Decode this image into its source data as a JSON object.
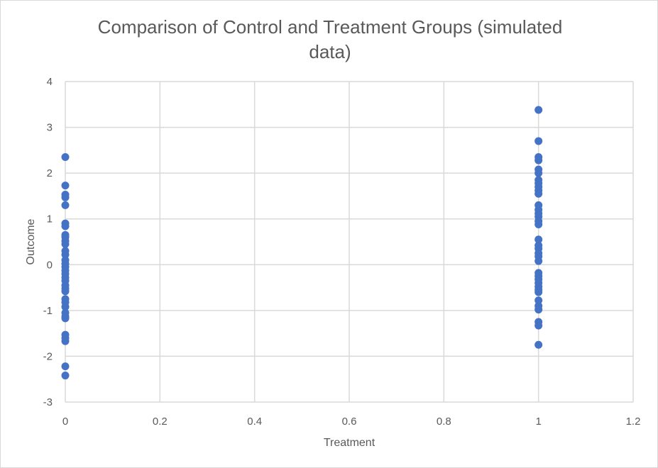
{
  "chart_data": {
    "type": "scatter",
    "title_lines": [
      "Comparison of Control and Treatment Groups (simulated",
      "data)"
    ],
    "xlabel": "Treatment",
    "ylabel": "Outcome",
    "xlim": [
      0,
      1.2
    ],
    "ylim": [
      -3,
      4
    ],
    "x_ticks": [
      0,
      0.2,
      0.4,
      0.6,
      0.8,
      1,
      1.2
    ],
    "x_tick_labels": [
      "0",
      "0.2",
      "0.4",
      "0.6",
      "0.8",
      "1",
      "1.2"
    ],
    "y_ticks": [
      -3,
      -2,
      -1,
      0,
      1,
      2,
      3,
      4
    ],
    "y_tick_labels": [
      "-3",
      "-2",
      "-1",
      "0",
      "1",
      "2",
      "3",
      "4"
    ],
    "grid": true,
    "legend": "none",
    "marker_color": "#4472c4",
    "points": [
      {
        "x": 0,
        "y": 2.35
      },
      {
        "x": 0,
        "y": 1.73
      },
      {
        "x": 0,
        "y": 1.53
      },
      {
        "x": 0,
        "y": 1.47
      },
      {
        "x": 0,
        "y": 1.3
      },
      {
        "x": 0,
        "y": 0.9
      },
      {
        "x": 0,
        "y": 0.84
      },
      {
        "x": 0,
        "y": 0.65
      },
      {
        "x": 0,
        "y": 0.6
      },
      {
        "x": 0,
        "y": 0.52
      },
      {
        "x": 0,
        "y": 0.45
      },
      {
        "x": 0,
        "y": 0.3
      },
      {
        "x": 0,
        "y": 0.22
      },
      {
        "x": 0,
        "y": 0.1
      },
      {
        "x": 0,
        "y": 0.02
      },
      {
        "x": 0,
        "y": -0.05
      },
      {
        "x": 0,
        "y": -0.13
      },
      {
        "x": 0,
        "y": -0.2
      },
      {
        "x": 0,
        "y": -0.28
      },
      {
        "x": 0,
        "y": -0.35
      },
      {
        "x": 0,
        "y": -0.45
      },
      {
        "x": 0,
        "y": -0.52
      },
      {
        "x": 0,
        "y": -0.58
      },
      {
        "x": 0,
        "y": -0.75
      },
      {
        "x": 0,
        "y": -0.82
      },
      {
        "x": 0,
        "y": -0.92
      },
      {
        "x": 0,
        "y": -1.05
      },
      {
        "x": 0,
        "y": -1.13
      },
      {
        "x": 0,
        "y": -1.17
      },
      {
        "x": 0,
        "y": -1.53
      },
      {
        "x": 0,
        "y": -1.6
      },
      {
        "x": 0,
        "y": -1.67
      },
      {
        "x": 0,
        "y": -2.22
      },
      {
        "x": 0,
        "y": -2.42
      },
      {
        "x": 1,
        "y": 3.38
      },
      {
        "x": 1,
        "y": 2.7
      },
      {
        "x": 1,
        "y": 2.35
      },
      {
        "x": 1,
        "y": 2.28
      },
      {
        "x": 1,
        "y": 2.08
      },
      {
        "x": 1,
        "y": 2.0
      },
      {
        "x": 1,
        "y": 1.85
      },
      {
        "x": 1,
        "y": 1.78
      },
      {
        "x": 1,
        "y": 1.7
      },
      {
        "x": 1,
        "y": 1.62
      },
      {
        "x": 1,
        "y": 1.55
      },
      {
        "x": 1,
        "y": 1.3
      },
      {
        "x": 1,
        "y": 1.2
      },
      {
        "x": 1,
        "y": 1.12
      },
      {
        "x": 1,
        "y": 1.05
      },
      {
        "x": 1,
        "y": 0.95
      },
      {
        "x": 1,
        "y": 0.88
      },
      {
        "x": 1,
        "y": 0.55
      },
      {
        "x": 1,
        "y": 0.42
      },
      {
        "x": 1,
        "y": 0.35
      },
      {
        "x": 1,
        "y": 0.25
      },
      {
        "x": 1,
        "y": 0.18
      },
      {
        "x": 1,
        "y": 0.08
      },
      {
        "x": 1,
        "y": -0.18
      },
      {
        "x": 1,
        "y": -0.25
      },
      {
        "x": 1,
        "y": -0.32
      },
      {
        "x": 1,
        "y": -0.4
      },
      {
        "x": 1,
        "y": -0.48
      },
      {
        "x": 1,
        "y": -0.55
      },
      {
        "x": 1,
        "y": -0.6
      },
      {
        "x": 1,
        "y": -0.78
      },
      {
        "x": 1,
        "y": -0.9
      },
      {
        "x": 1,
        "y": -0.98
      },
      {
        "x": 1,
        "y": -1.25
      },
      {
        "x": 1,
        "y": -1.33
      },
      {
        "x": 1,
        "y": -1.75
      }
    ]
  }
}
